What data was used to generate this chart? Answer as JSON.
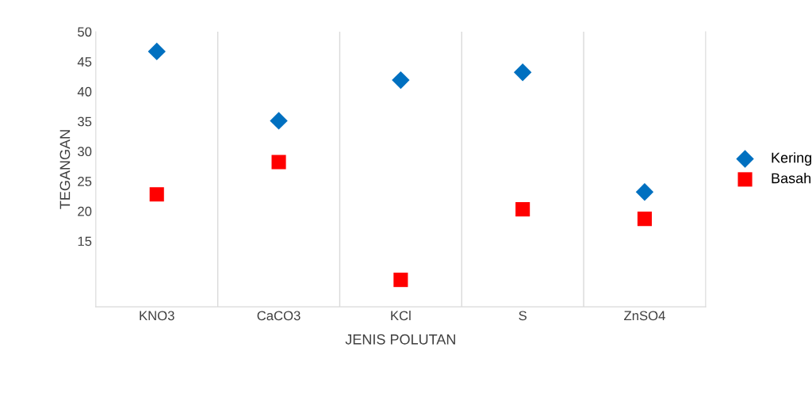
{
  "chart_data": {
    "type": "scatter",
    "xlabel": "JENIS POLUTAN",
    "ylabel": "TEGANGAN",
    "categories": [
      "KNO3",
      "CaCO3",
      "KCl",
      "S",
      "ZnSO4"
    ],
    "series": [
      {
        "name": "Kering",
        "color": "#0070c0",
        "marker": "diamond",
        "values": [
          46.7,
          35.1,
          41.9,
          43.2,
          23.2
        ]
      },
      {
        "name": "Basah",
        "color": "#ff0000",
        "marker": "square",
        "values": [
          22.8,
          28.2,
          8.5,
          20.3,
          18.7
        ]
      }
    ],
    "ylim": [
      4,
      50
    ],
    "yticks": [
      15,
      20,
      25,
      30,
      35,
      40,
      45,
      50
    ],
    "grid": "x",
    "legend": "right"
  }
}
